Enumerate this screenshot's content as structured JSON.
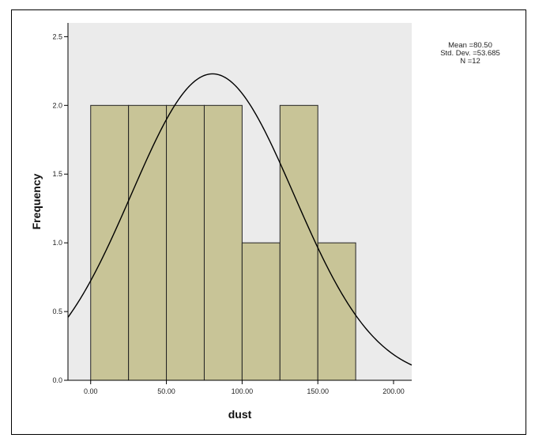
{
  "chart_data": {
    "type": "bar",
    "subtype": "histogram",
    "xlabel": "dust",
    "ylabel": "Frequency",
    "bins": [
      {
        "from": 0,
        "to": 25,
        "count": 2
      },
      {
        "from": 25,
        "to": 50,
        "count": 2
      },
      {
        "from": 50,
        "to": 75,
        "count": 2
      },
      {
        "from": 75,
        "to": 100,
        "count": 2
      },
      {
        "from": 100,
        "to": 125,
        "count": 1
      },
      {
        "from": 125,
        "to": 150,
        "count": 2
      },
      {
        "from": 150,
        "to": 175,
        "count": 1
      }
    ],
    "xlim": [
      -15,
      212
    ],
    "ylim": [
      0,
      2.6
    ],
    "xticks": [
      "0.00",
      "50.00",
      "100.00",
      "150.00",
      "200.00"
    ],
    "xtick_values": [
      0,
      50,
      100,
      150,
      200
    ],
    "yticks": [
      "0.0",
      "0.5",
      "1.0",
      "1.5",
      "2.0",
      "2.5"
    ],
    "ytick_values": [
      0,
      0.5,
      1.0,
      1.5,
      2.0,
      2.5
    ],
    "normal_curve": {
      "mean": 80.5,
      "std": 53.685,
      "n": 12,
      "bin_width": 25
    },
    "stats_lines": [
      "Mean =80.50",
      "Std. Dev. =53.685",
      "N =12"
    ],
    "colors": {
      "bar_fill": "#c8c497",
      "bar_stroke": "#222222",
      "plot_bg": "#ebebeb",
      "curve": "#000000"
    },
    "grid": false,
    "legend": "top-right"
  }
}
